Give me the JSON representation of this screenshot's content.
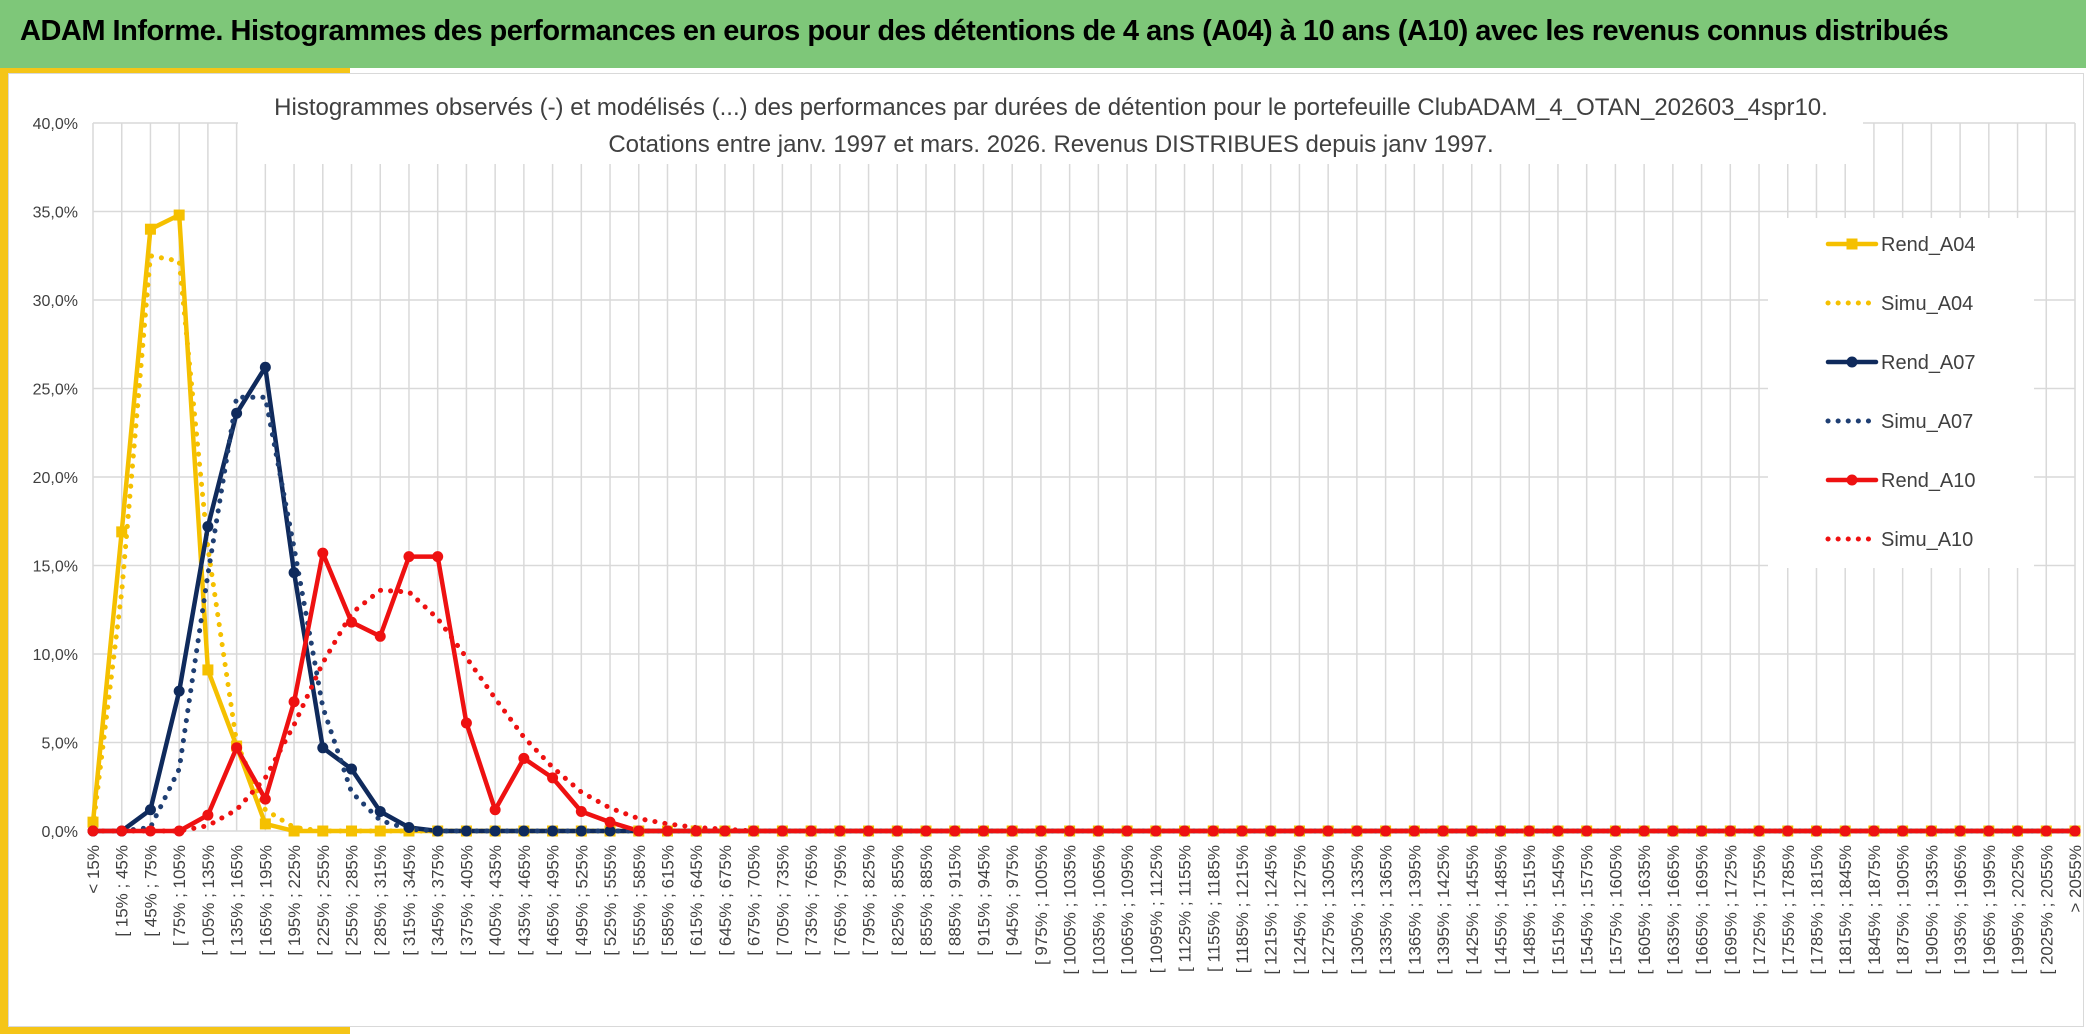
{
  "banner": {
    "title": "ADAM Informe. Histogrammes des performances en euros pour des détentions de 4 ans (A04) à 10 ans (A10) avec les revenus connus distribués"
  },
  "colors": {
    "banner_bg": "#7ec779",
    "accent": "#f5c518",
    "A04": "#f5c000",
    "A07": "#0f2a5c",
    "A10": "#ee1111",
    "grid": "#d9d9d9"
  },
  "chart_data": {
    "type": "line",
    "title": "Histogrammes observés (-) et modélisés (...) des performances par durées de détention pour le portefeuille ClubADAM_4_OTAN_202603_4spr10.",
    "subtitle": "Cotations entre janv. 1997 et mars. 2026. Revenus DISTRIBUES depuis janv 1997.",
    "xlabel": "",
    "ylabel": "",
    "ylim": [
      0,
      40
    ],
    "y_ticks": [
      "0,0%",
      "5,0%",
      "10,0%",
      "15,0%",
      "20,0%",
      "25,0%",
      "30,0%",
      "35,0%",
      "40,0%"
    ],
    "grid": true,
    "legend_position": "right",
    "categories": [
      "< 15%",
      "[ 15% ; 45%",
      "[ 45% ; 75%",
      "[ 75% ; 105%",
      "[ 105% ; 135%",
      "[ 135% ; 165%",
      "[ 165% ; 195%",
      "[ 195% ; 225%",
      "[ 225% ; 255%",
      "[ 255% ; 285%",
      "[ 285% ; 315%",
      "[ 315% ; 345%",
      "[ 345% ; 375%",
      "[ 375% ; 405%",
      "[ 405% ; 435%",
      "[ 435% ; 465%",
      "[ 465% ; 495%",
      "[ 495% ; 525%",
      "[ 525% ; 555%",
      "[ 555% ; 585%",
      "[ 585% ; 615%",
      "[ 615% ; 645%",
      "[ 645% ; 675%",
      "[ 675% ; 705%",
      "[ 705% ; 735%",
      "[ 735% ; 765%",
      "[ 765% ; 795%",
      "[ 795% ; 825%",
      "[ 825% ; 855%",
      "[ 855% ; 885%",
      "[ 885% ; 915%",
      "[ 915% ; 945%",
      "[ 945% ; 975%",
      "[ 975% ; 1005%",
      "[ 1005% ; 1035%",
      "[ 1035% ; 1065%",
      "[ 1065% ; 1095%",
      "[ 1095% ; 1125%",
      "[ 1125% ; 1155%",
      "[ 1155% ; 1185%",
      "[ 1185% ; 1215%",
      "[ 1215% ; 1245%",
      "[ 1245% ; 1275%",
      "[ 1275% ; 1305%",
      "[ 1305% ; 1335%",
      "[ 1335% ; 1365%",
      "[ 1365% ; 1395%",
      "[ 1395% ; 1425%",
      "[ 1425% ; 1455%",
      "[ 1455% ; 1485%",
      "[ 1485% ; 1515%",
      "[ 1515% ; 1545%",
      "[ 1545% ; 1575%",
      "[ 1575% ; 1605%",
      "[ 1605% ; 1635%",
      "[ 1635% ; 1665%",
      "[ 1665% ; 1695%",
      "[ 1695% ; 1725%",
      "[ 1725% ; 1755%",
      "[ 1755% ; 1785%",
      "[ 1785% ; 1815%",
      "[ 1815% ; 1845%",
      "[ 1845% ; 1875%",
      "[ 1875% ; 1905%",
      "[ 1905% ; 1935%",
      "[ 1935% ; 1965%",
      "[ 1965% ; 1995%",
      "[ 1995% ; 2025%",
      "[ 2025% ; 2055%",
      "> 2055%"
    ],
    "series": [
      {
        "name": "Rend_A04",
        "style": "solid",
        "marker": "square",
        "color": "#f5c000",
        "values": [
          0.5,
          16.9,
          34.0,
          34.8,
          9.1,
          4.8,
          0.4,
          0.0,
          0.0,
          0.0,
          0.0,
          0.0,
          0.0,
          0.0,
          0.0,
          0.0,
          0.0,
          0.0,
          0.0,
          0.0,
          0.0,
          0.0,
          0.0,
          0.0,
          0.0,
          0.0,
          0.0,
          0.0,
          0.0,
          0.0,
          0.0,
          0.0,
          0.0,
          0.0,
          0.0,
          0.0,
          0.0,
          0.0,
          0.0,
          0.0,
          0.0,
          0.0,
          0.0,
          0.0,
          0.0,
          0.0,
          0.0,
          0.0,
          0.0,
          0.0,
          0.0,
          0.0,
          0.0,
          0.0,
          0.0,
          0.0,
          0.0,
          0.0,
          0.0,
          0.0,
          0.0,
          0.0,
          0.0,
          0.0,
          0.0,
          0.0,
          0.0,
          0.0,
          0.0,
          0.0
        ]
      },
      {
        "name": "Simu_A04",
        "style": "dotted",
        "marker": "none",
        "color": "#f5c000",
        "values": [
          0.2,
          13.5,
          32.5,
          32.2,
          16.0,
          5.0,
          1.2,
          0.2,
          0.0,
          0.0,
          0.0,
          0.0,
          0.0,
          0.0,
          0.0,
          0.0,
          0.0,
          0.0,
          0.0,
          0.0,
          0.0,
          0.0,
          0.0,
          0.0,
          0.0,
          0.0,
          0.0,
          0.0,
          0.0,
          0.0,
          0.0,
          0.0,
          0.0,
          0.0,
          0.0,
          0.0,
          0.0,
          0.0,
          0.0,
          0.0,
          0.0,
          0.0,
          0.0,
          0.0,
          0.0,
          0.0,
          0.0,
          0.0,
          0.0,
          0.0,
          0.0,
          0.0,
          0.0,
          0.0,
          0.0,
          0.0,
          0.0,
          0.0,
          0.0,
          0.0,
          0.0,
          0.0,
          0.0,
          0.0,
          0.0,
          0.0,
          0.0,
          0.0,
          0.0,
          0.0
        ]
      },
      {
        "name": "Rend_A07",
        "style": "solid",
        "marker": "circle",
        "color": "#0f2a5c",
        "values": [
          0.0,
          0.0,
          1.2,
          7.9,
          17.2,
          23.6,
          26.2,
          14.6,
          4.7,
          3.5,
          1.1,
          0.2,
          0.0,
          0.0,
          0.0,
          0.0,
          0.0,
          0.0,
          0.0,
          0.0,
          0.0,
          0.0,
          0.0,
          0.0,
          0.0,
          0.0,
          0.0,
          0.0,
          0.0,
          0.0,
          0.0,
          0.0,
          0.0,
          0.0,
          0.0,
          0.0,
          0.0,
          0.0,
          0.0,
          0.0,
          0.0,
          0.0,
          0.0,
          0.0,
          0.0,
          0.0,
          0.0,
          0.0,
          0.0,
          0.0,
          0.0,
          0.0,
          0.0,
          0.0,
          0.0,
          0.0,
          0.0,
          0.0,
          0.0,
          0.0,
          0.0,
          0.0,
          0.0,
          0.0,
          0.0,
          0.0,
          0.0,
          0.0,
          0.0,
          0.0
        ]
      },
      {
        "name": "Simu_A07",
        "style": "dotted",
        "marker": "none",
        "color": "#1f3f73",
        "values": [
          0.0,
          0.0,
          0.2,
          3.5,
          14.5,
          24.5,
          24.5,
          16.0,
          7.0,
          2.2,
          0.6,
          0.1,
          0.0,
          0.0,
          0.0,
          0.0,
          0.0,
          0.0,
          0.0,
          0.0,
          0.0,
          0.0,
          0.0,
          0.0,
          0.0,
          0.0,
          0.0,
          0.0,
          0.0,
          0.0,
          0.0,
          0.0,
          0.0,
          0.0,
          0.0,
          0.0,
          0.0,
          0.0,
          0.0,
          0.0,
          0.0,
          0.0,
          0.0,
          0.0,
          0.0,
          0.0,
          0.0,
          0.0,
          0.0,
          0.0,
          0.0,
          0.0,
          0.0,
          0.0,
          0.0,
          0.0,
          0.0,
          0.0,
          0.0,
          0.0,
          0.0,
          0.0,
          0.0,
          0.0,
          0.0,
          0.0,
          0.0,
          0.0,
          0.0,
          0.0
        ]
      },
      {
        "name": "Rend_A10",
        "style": "solid",
        "marker": "circle",
        "color": "#ee1111",
        "values": [
          0.0,
          0.0,
          0.0,
          0.0,
          0.9,
          4.7,
          1.8,
          7.3,
          15.7,
          11.8,
          11.0,
          15.5,
          15.5,
          6.1,
          1.2,
          4.1,
          3.0,
          1.1,
          0.5,
          0.0,
          0.0,
          0.0,
          0.0,
          0.0,
          0.0,
          0.0,
          0.0,
          0.0,
          0.0,
          0.0,
          0.0,
          0.0,
          0.0,
          0.0,
          0.0,
          0.0,
          0.0,
          0.0,
          0.0,
          0.0,
          0.0,
          0.0,
          0.0,
          0.0,
          0.0,
          0.0,
          0.0,
          0.0,
          0.0,
          0.0,
          0.0,
          0.0,
          0.0,
          0.0,
          0.0,
          0.0,
          0.0,
          0.0,
          0.0,
          0.0,
          0.0,
          0.0,
          0.0,
          0.0,
          0.0,
          0.0,
          0.0,
          0.0,
          0.0,
          0.0
        ]
      },
      {
        "name": "Simu_A10",
        "style": "dotted",
        "marker": "none",
        "color": "#ee1111",
        "values": [
          0.0,
          0.0,
          0.0,
          0.0,
          0.3,
          1.2,
          3.0,
          6.0,
          9.5,
          12.3,
          13.6,
          13.5,
          12.0,
          9.8,
          7.5,
          5.3,
          3.6,
          2.2,
          1.3,
          0.7,
          0.4,
          0.2,
          0.1,
          0.0,
          0.0,
          0.0,
          0.0,
          0.0,
          0.0,
          0.0,
          0.0,
          0.0,
          0.0,
          0.0,
          0.0,
          0.0,
          0.0,
          0.0,
          0.0,
          0.0,
          0.0,
          0.0,
          0.0,
          0.0,
          0.0,
          0.0,
          0.0,
          0.0,
          0.0,
          0.0,
          0.0,
          0.0,
          0.0,
          0.0,
          0.0,
          0.0,
          0.0,
          0.0,
          0.0,
          0.0,
          0.0,
          0.0,
          0.0,
          0.0,
          0.0,
          0.0,
          0.0,
          0.0,
          0.0,
          0.0
        ]
      }
    ]
  }
}
